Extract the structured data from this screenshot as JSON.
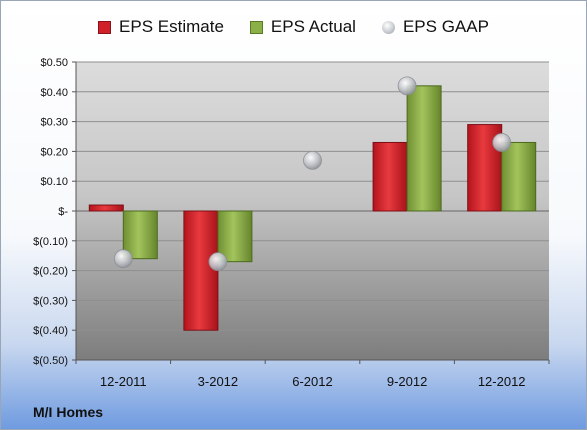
{
  "chart_data": {
    "type": "bar",
    "categories": [
      "12-2011",
      "3-2012",
      "6-2012",
      "9-2012",
      "12-2012"
    ],
    "series": [
      {
        "name": "EPS Estimate",
        "kind": "bar",
        "color": "#d0202a",
        "values": [
          0.02,
          -0.4,
          null,
          0.23,
          0.29
        ]
      },
      {
        "name": "EPS Actual",
        "kind": "bar",
        "color": "#8cb048",
        "values": [
          -0.16,
          -0.17,
          null,
          0.42,
          0.23
        ]
      },
      {
        "name": "EPS GAAP",
        "kind": "marker",
        "color": "#b8bcc2",
        "values": [
          -0.16,
          -0.17,
          0.17,
          0.42,
          0.23
        ]
      }
    ],
    "ylim": [
      -0.5,
      0.5
    ],
    "yticks": [
      0.5,
      0.4,
      0.3,
      0.2,
      0.1,
      0,
      -0.1,
      -0.2,
      -0.3,
      -0.4,
      -0.5
    ],
    "ytick_labels": [
      "$0.50",
      "$0.40",
      "$0.30",
      "$0.20",
      "$0.10",
      "$-",
      "$(0.10)",
      "$(0.20)",
      "$(0.30)",
      "$(0.40)",
      "$(0.50)"
    ],
    "grid": true,
    "legend_position": "top"
  },
  "footer": {
    "company": "M/I Homes"
  }
}
